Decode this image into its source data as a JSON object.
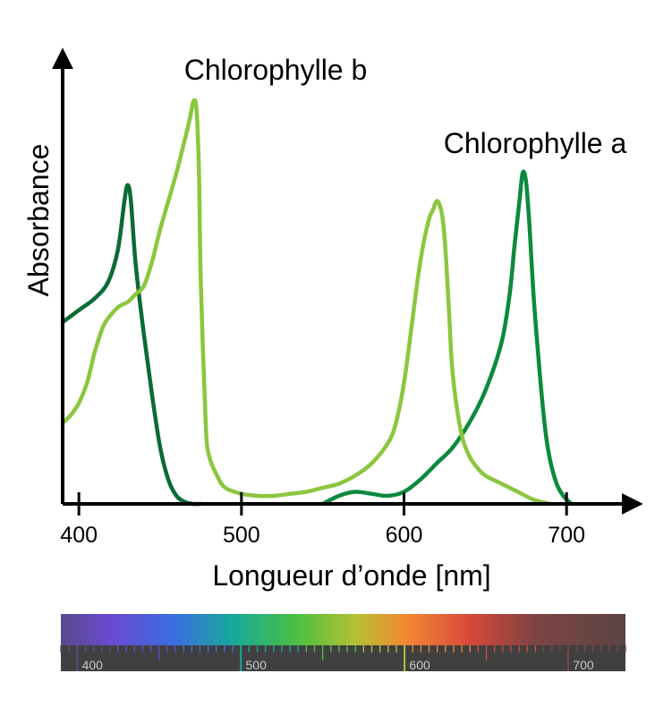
{
  "chart_data": {
    "type": "line",
    "xlabel": "Longueur d’onde [nm]",
    "ylabel": "Absorbance",
    "x_ticks": [
      400,
      500,
      600,
      700
    ],
    "xlim": [
      390,
      735
    ],
    "ylim": [
      0,
      1.0
    ],
    "grid": false,
    "series": [
      {
        "name": "Chlorophylle a",
        "color": "#0b8a3e",
        "label_color": "#0b7a3a",
        "segments": [
          {
            "color": "#0a6b36",
            "x": [
              390,
              400,
              410,
              418,
              424,
              428,
              430,
              432,
              435,
              440,
              445,
              450,
              455,
              460,
              465,
              470,
              475
            ],
            "y": [
              0.45,
              0.48,
              0.51,
              0.55,
              0.63,
              0.75,
              0.79,
              0.75,
              0.59,
              0.42,
              0.27,
              0.14,
              0.06,
              0.02,
              0.005,
              0.0,
              0.0
            ]
          },
          {
            "color": "#0b8a3e",
            "x": [
              550,
              560,
              570,
              580,
              590,
              600,
              610,
              620,
              630,
              640,
              650,
              660,
              665,
              668,
              671,
              673,
              675,
              677,
              680,
              684,
              688,
              693,
              698,
              703
            ],
            "y": [
              0.0,
              0.02,
              0.03,
              0.025,
              0.02,
              0.03,
              0.06,
              0.1,
              0.14,
              0.2,
              0.28,
              0.4,
              0.52,
              0.64,
              0.75,
              0.82,
              0.8,
              0.7,
              0.5,
              0.3,
              0.15,
              0.06,
              0.02,
              0.0
            ]
          }
        ]
      },
      {
        "name": "Chlorophylle b",
        "color": "#8cc63f",
        "label_color": "#8cc63f",
        "segments": [
          {
            "color": "#8cc63f",
            "x": [
              390,
              395,
              400,
              405,
              410,
              415,
              420,
              425,
              430,
              435,
              440,
              445,
              450,
              455,
              460,
              465,
              468,
              470,
              471,
              472,
              473,
              474,
              475,
              478,
              480,
              485,
              490,
              500,
              510,
              520,
              530,
              540,
              550,
              560,
              570,
              580,
              590,
              595,
              600,
              605,
              610,
              615,
              618,
              620,
              622,
              624,
              626,
              628,
              630,
              635,
              640,
              645,
              650,
              660,
              670,
              680,
              690
            ],
            "y": [
              0.2,
              0.22,
              0.25,
              0.3,
              0.38,
              0.44,
              0.47,
              0.49,
              0.5,
              0.52,
              0.54,
              0.6,
              0.68,
              0.75,
              0.82,
              0.9,
              0.95,
              0.99,
              1.0,
              0.99,
              0.93,
              0.8,
              0.55,
              0.2,
              0.12,
              0.07,
              0.04,
              0.025,
              0.02,
              0.02,
              0.025,
              0.03,
              0.04,
              0.05,
              0.07,
              0.1,
              0.15,
              0.2,
              0.3,
              0.45,
              0.6,
              0.7,
              0.73,
              0.75,
              0.74,
              0.7,
              0.6,
              0.45,
              0.32,
              0.18,
              0.12,
              0.09,
              0.07,
              0.05,
              0.03,
              0.01,
              0.0
            ]
          }
        ]
      }
    ],
    "annotations": [
      {
        "text": "Chlorophylle b",
        "near": "top-center",
        "series": 1
      },
      {
        "text": "Chlorophylle a",
        "near": "top-right",
        "series": 0
      }
    ],
    "spectrum_bar": {
      "tick_labels": [
        "400",
        "500",
        "600",
        "700"
      ],
      "stops": [
        {
          "nm": 390,
          "color": "#5a4a8a"
        },
        {
          "nm": 420,
          "color": "#6a4ad0"
        },
        {
          "nm": 460,
          "color": "#3a6ee0"
        },
        {
          "nm": 495,
          "color": "#17a99a"
        },
        {
          "nm": 535,
          "color": "#4cc040"
        },
        {
          "nm": 570,
          "color": "#b6c034"
        },
        {
          "nm": 600,
          "color": "#f28a33"
        },
        {
          "nm": 640,
          "color": "#d8483a"
        },
        {
          "nm": 680,
          "color": "#7d4444"
        },
        {
          "nm": 735,
          "color": "#5c4444"
        }
      ],
      "background_color": "#404040"
    }
  }
}
